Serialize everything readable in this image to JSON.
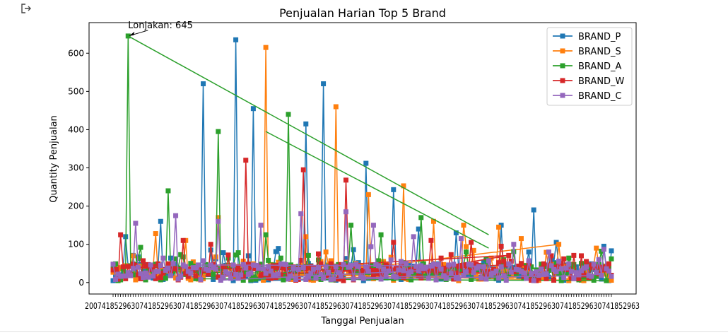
{
  "toolbar": {
    "output_icon": "exit-output-icon"
  },
  "chart_data": {
    "type": "line",
    "title": "Penjualan Harian Top 5 Brand",
    "xlabel": "Tanggal Penjualan",
    "ylabel": "Quantity Penjualan",
    "ylim": [
      -30,
      680
    ],
    "yticks": [
      0,
      100,
      200,
      300,
      400,
      500,
      600
    ],
    "legend_position": "top-right",
    "grid": false,
    "x_tick_labels_overlapping": true,
    "annotation": {
      "text": "Lonjakan: 645",
      "series": "BRAND_A",
      "value": 645
    },
    "series": [
      {
        "name": "BRAND_P",
        "color": "#1f77b4",
        "marker": "square",
        "peaks": [
          120,
          160,
          520,
          635,
          455,
          415,
          520,
          312,
          243,
          140,
          130,
          150,
          190,
          105,
          95
        ]
      },
      {
        "name": "BRAND_S",
        "color": "#ff7f0e",
        "marker": "square",
        "peaks": [
          70,
          128,
          110,
          170,
          615,
          120,
          460,
          230,
          253,
          160,
          150,
          145,
          115,
          100,
          90
        ]
      },
      {
        "name": "BRAND_A",
        "color": "#2ca02c",
        "marker": "square",
        "peaks": [
          645,
          240,
          395,
          125,
          440,
          150,
          125,
          170,
          80,
          60,
          50,
          45
        ]
      },
      {
        "name": "BRAND_W",
        "color": "#d62728",
        "marker": "square",
        "peaks": [
          125,
          110,
          100,
          320,
          295,
          268,
          105,
          110,
          105,
          95,
          70,
          40
        ]
      },
      {
        "name": "BRAND_C",
        "color": "#9467bd",
        "marker": "square",
        "peaks": [
          155,
          175,
          160,
          150,
          180,
          185,
          150,
          120,
          115,
          100,
          80,
          60
        ]
      }
    ]
  }
}
